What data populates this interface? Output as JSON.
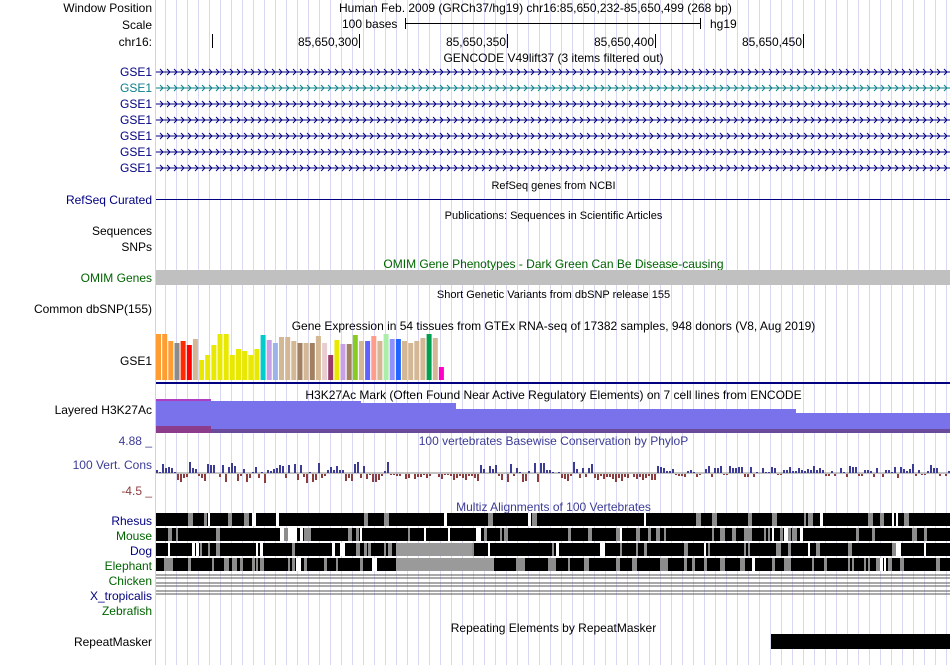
{
  "position": {
    "label": "Window Position",
    "text": "Human Feb. 2009 (GRCh37/hg19)   chr16:85,650,232-85,650,499 (268 bp)"
  },
  "scale": {
    "label": "Scale",
    "bar_text": "100 bases",
    "assembly": "hg19"
  },
  "ruler": {
    "chrom_label": "chr16:",
    "ticks": [
      "85,650,300",
      "85,650,350",
      "85,650,400",
      "85,650,450"
    ]
  },
  "tracks": {
    "gencode": {
      "title": "GENCODE V49lift37 (3 items filtered out)",
      "items": [
        "GSE1",
        "GSE1",
        "GSE1",
        "GSE1",
        "GSE1",
        "GSE1",
        "GSE1"
      ]
    },
    "refseq": {
      "label": "RefSeq Curated",
      "title": "RefSeq genes from NCBI"
    },
    "publications": {
      "title": "Publications: Sequences in Scientific Articles"
    },
    "sequences": {
      "label": "Sequences"
    },
    "snps": {
      "label": "SNPs"
    },
    "omim": {
      "label": "OMIM Genes",
      "title": "OMIM Gene Phenotypes - Dark Green Can Be Disease-causing"
    },
    "dbsnp": {
      "label": "Common dbSNP(155)",
      "title": "Short Genetic Variants from dbSNP release 155"
    },
    "gtex": {
      "label": "GSE1",
      "title": "Gene Expression in 54 tissues from GTEx RNA-seq of 17382 samples, 948 donors (V8, Aug 2019)",
      "colors": [
        "#ff9c32",
        "#ff9c32",
        "#ff9c32",
        "#8b8b8b",
        "#ff2a00",
        "#ff0000",
        "#d4b896",
        "#e8e800",
        "#e8e800",
        "#e8e800",
        "#e8e800",
        "#e8e800",
        "#e8e800",
        "#e8e800",
        "#e8e800",
        "#e8e800",
        "#e8e800",
        "#00cccc",
        "#c8a0e6",
        "#9ab4e6",
        "#d4b896",
        "#d4b896",
        "#d4b896",
        "#a08060",
        "#d4b896",
        "#a08060",
        "#d4b896",
        "#e8ccd0",
        "#9a3a6a",
        "#e8e800",
        "#c8a0e6",
        "#a08060",
        "#88cc22",
        "#d4b896",
        "#6060ff",
        "#ff9c8c",
        "#d4b896",
        "#aaeeaa",
        "#9090ff",
        "#2266ff",
        "#d4b896",
        "#d4b896",
        "#d4b896",
        "#d4b896",
        "#00a050",
        "#d4b896",
        "#ff00c8"
      ],
      "values": [
        1.0,
        1.0,
        0.85,
        0.8,
        0.85,
        0.76,
        0.89,
        0.43,
        0.54,
        0.76,
        1.0,
        1.0,
        0.54,
        0.67,
        0.63,
        0.54,
        0.67,
        0.98,
        0.87,
        0.8,
        0.94,
        0.94,
        0.85,
        0.8,
        0.8,
        0.8,
        0.96,
        0.8,
        0.54,
        0.87,
        0.78,
        0.78,
        0.98,
        0.85,
        0.85,
        0.96,
        0.85,
        1.0,
        0.89,
        0.89,
        0.85,
        0.8,
        0.85,
        0.91,
        1.0,
        0.91,
        0.28
      ]
    },
    "h3k27ac": {
      "label": "Layered H3K27Ac",
      "title": "H3K27Ac Mark (Often Found Near Active Regulatory Elements) on 7 cell lines from ENCODE"
    },
    "phylop": {
      "label": "100 Vert. Cons",
      "title": "100 vertebrates Basewise Conservation by PhyloP",
      "max_label": "4.88 _",
      "min_label": "-4.5 _",
      "range": [
        -4.5,
        4.88
      ]
    },
    "multiz": {
      "title": "Multiz Alignments of 100 Vertebrates",
      "species": [
        "Rhesus",
        "Mouse",
        "Dog",
        "Elephant",
        "Chicken",
        "X_tropicalis",
        "Zebrafish"
      ]
    },
    "repeatmasker": {
      "label": "RepeatMasker",
      "title": "Repeating Elements by RepeatMasker"
    }
  },
  "colors": {
    "navy": "#000080",
    "omim_green": "#006400",
    "phylop_pos": "#3c3c96",
    "phylop_neg": "#8c3c3c",
    "h3k27ac": "#7a72ea",
    "highlight_gene": "#0a7f8a"
  }
}
